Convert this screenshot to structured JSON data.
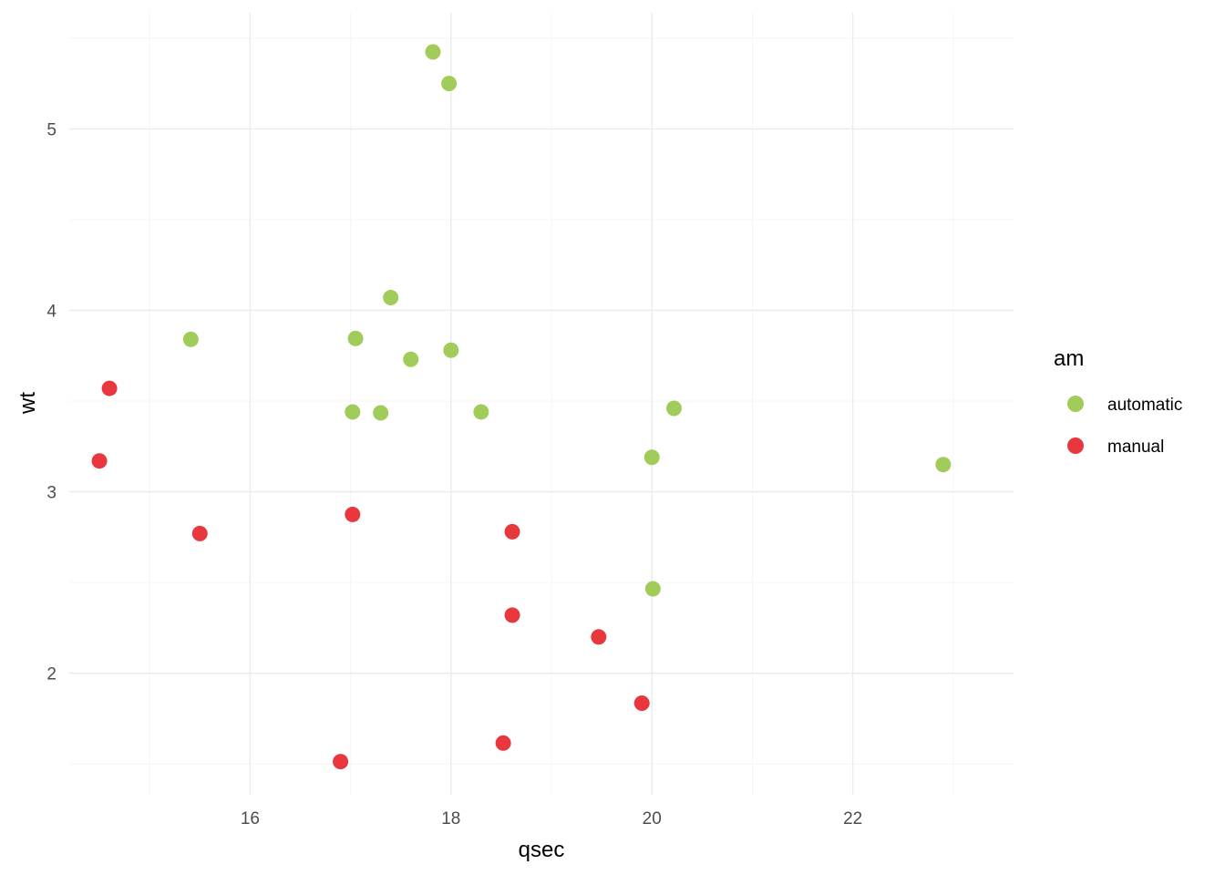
{
  "chart_data": {
    "type": "scatter",
    "xlabel": "qsec",
    "ylabel": "wt",
    "xlim": [
      14.2,
      23.6
    ],
    "ylim": [
      1.33,
      5.64
    ],
    "x_ticks": [
      16,
      18,
      20,
      22
    ],
    "x_tick_labels": [
      "16",
      "18",
      "20",
      "22"
    ],
    "y_ticks": [
      2,
      3,
      4,
      5
    ],
    "y_tick_labels": [
      "2",
      "3",
      "4",
      "5"
    ],
    "grid": true,
    "legend": {
      "title": "am",
      "position": "right",
      "entries": [
        {
          "label": "automatic",
          "color": "#a1cc5a"
        },
        {
          "label": "manual",
          "color": "#e8383d"
        }
      ]
    },
    "series": [
      {
        "name": "automatic",
        "color": "#a1cc5a",
        "points": [
          {
            "x": 17.82,
            "y": 5.424
          },
          {
            "x": 17.98,
            "y": 5.25
          },
          {
            "x": 17.4,
            "y": 4.07
          },
          {
            "x": 15.41,
            "y": 3.84
          },
          {
            "x": 17.05,
            "y": 3.845
          },
          {
            "x": 18.0,
            "y": 3.78
          },
          {
            "x": 17.6,
            "y": 3.73
          },
          {
            "x": 17.02,
            "y": 3.44
          },
          {
            "x": 17.3,
            "y": 3.435
          },
          {
            "x": 18.3,
            "y": 3.44
          },
          {
            "x": 20.22,
            "y": 3.46
          },
          {
            "x": 20.0,
            "y": 3.19
          },
          {
            "x": 22.9,
            "y": 3.15
          },
          {
            "x": 20.01,
            "y": 2.465
          }
        ]
      },
      {
        "name": "manual",
        "color": "#e8383d",
        "points": [
          {
            "x": 14.6,
            "y": 3.57
          },
          {
            "x": 14.5,
            "y": 3.17
          },
          {
            "x": 15.5,
            "y": 2.77
          },
          {
            "x": 17.02,
            "y": 2.875
          },
          {
            "x": 18.61,
            "y": 2.78
          },
          {
            "x": 18.61,
            "y": 2.32
          },
          {
            "x": 19.47,
            "y": 2.2
          },
          {
            "x": 19.9,
            "y": 1.835
          },
          {
            "x": 16.9,
            "y": 1.513
          },
          {
            "x": 18.52,
            "y": 1.615
          }
        ]
      }
    ]
  }
}
